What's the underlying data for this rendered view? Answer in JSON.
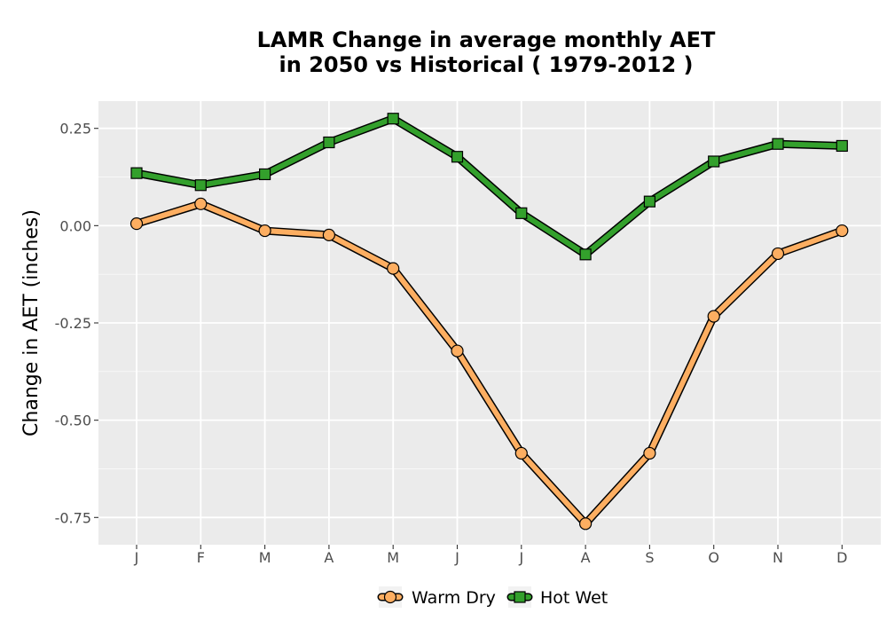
{
  "chart_data": {
    "type": "line",
    "title_line1": "LAMR  Change in average monthly AET",
    "title_line2": "in 2050 vs Historical ( 1979-2012 )",
    "xlabel": "",
    "ylabel": "Change in AET (inches)",
    "categories": [
      "J",
      "F",
      "M",
      "A",
      "M",
      "J",
      "J",
      "A",
      "S",
      "O",
      "N",
      "D"
    ],
    "ylim": [
      -0.82,
      0.32
    ],
    "yticks": [
      0.25,
      0.0,
      -0.25,
      -0.5,
      -0.75
    ],
    "ytick_labels": [
      "0.25",
      "0.00",
      "-0.25",
      "-0.50",
      "-0.75"
    ],
    "grid": true,
    "legend_position": "bottom",
    "colors": {
      "panel": "#ebebeb",
      "grid_major": "#ffffff",
      "warm_dry": "#fdae61",
      "hot_wet": "#33a02c",
      "outline": "#000000"
    },
    "series": [
      {
        "name": "Warm Dry",
        "marker": "circle",
        "values": [
          0.005,
          0.056,
          -0.013,
          -0.024,
          -0.11,
          -0.322,
          -0.585,
          -0.766,
          -0.585,
          -0.233,
          -0.072,
          -0.013
        ]
      },
      {
        "name": "Hot Wet",
        "marker": "square",
        "values": [
          0.135,
          0.104,
          0.132,
          0.214,
          0.275,
          0.177,
          0.032,
          -0.074,
          0.062,
          0.165,
          0.21,
          0.205
        ]
      }
    ]
  }
}
